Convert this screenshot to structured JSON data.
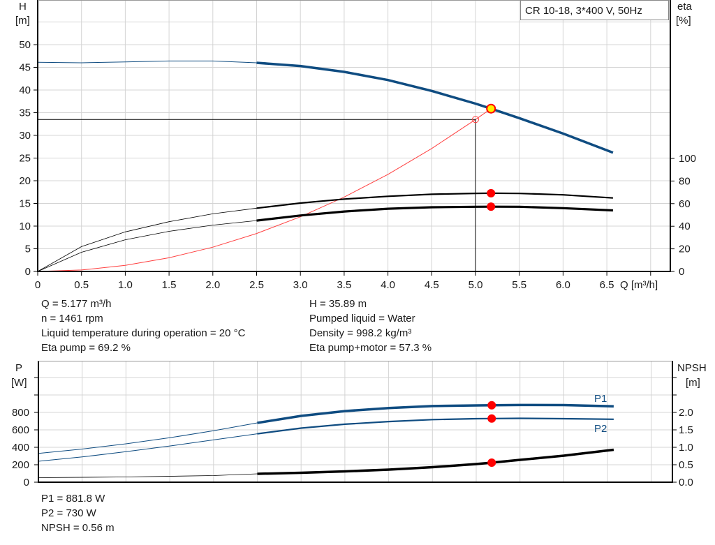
{
  "legend_title": "CR 10-18, 3*400 V, 50Hz",
  "colors": {
    "head": "#0f4c81",
    "eta": "#000000",
    "system": "#ff4040",
    "duty_point": "#ff0000",
    "duty_fill": "#ffee00",
    "grid": "#d4d4d4"
  },
  "chart_data": [
    {
      "type": "line",
      "xlabel": "Q [m³/h]",
      "ylabel": "H\n[m]",
      "ylabel_parts": [
        "H",
        "[m]"
      ],
      "y2label_parts": [
        "eta",
        "[%]"
      ],
      "xlim": [
        0,
        7.0
      ],
      "ylim": [
        0,
        55
      ],
      "y2lim": [
        0,
        100
      ],
      "grid": true,
      "x_ticks": [
        "0",
        "0.5",
        "1.0",
        "1.5",
        "2.0",
        "2.5",
        "3.0",
        "3.5",
        "4.0",
        "4.5",
        "5.0",
        "5.5",
        "6.0",
        "6.5"
      ],
      "y_ticks": [
        "0",
        "5",
        "10",
        "15",
        "20",
        "25",
        "30",
        "35",
        "40",
        "45",
        "50"
      ],
      "y2_ticks": [
        "0",
        "20",
        "40",
        "60",
        "80",
        "100"
      ],
      "series": [
        {
          "key": "head",
          "axis": "H",
          "x": [
            0,
            0.5,
            1.0,
            1.5,
            2.0,
            2.5,
            3.0,
            3.5,
            4.0,
            4.5,
            5.0,
            5.177,
            5.5,
            6.0,
            6.57
          ],
          "y": [
            46.1,
            46.0,
            46.2,
            46.4,
            46.4,
            46.0,
            45.3,
            44.0,
            42.2,
            39.8,
            37.0,
            35.89,
            33.8,
            30.4,
            26.2
          ]
        },
        {
          "key": "eta_pump",
          "axis": "eta",
          "x": [
            0,
            0.5,
            1.0,
            1.5,
            2.0,
            2.5,
            3.0,
            3.5,
            4.0,
            4.5,
            5.0,
            5.177,
            5.5,
            6.0,
            6.57
          ],
          "y": [
            0,
            22,
            35,
            44,
            51,
            56,
            60.5,
            64,
            66.5,
            68.3,
            69.1,
            69.2,
            69.0,
            67.8,
            65
          ]
        },
        {
          "key": "eta_pump_motor",
          "axis": "eta",
          "x": [
            0,
            0.5,
            1.0,
            1.5,
            2.0,
            2.5,
            3.0,
            3.5,
            4.0,
            4.5,
            5.0,
            5.177,
            5.5,
            6.0,
            6.57
          ],
          "y": [
            0,
            17,
            28,
            35.5,
            41,
            45,
            49.5,
            53,
            55.5,
            56.8,
            57.2,
            57.3,
            57.2,
            56,
            54
          ]
        },
        {
          "key": "system",
          "axis": "H",
          "x": [
            0,
            0.5,
            1.0,
            1.5,
            2.0,
            2.5,
            3.0,
            3.5,
            4.0,
            4.5,
            5.0,
            5.177
          ],
          "y": [
            0,
            0.33,
            1.34,
            3.01,
            5.36,
            8.37,
            12.05,
            16.4,
            21.4,
            27.1,
            33.5,
            35.89
          ]
        }
      ],
      "duty_point": {
        "Q": 5.177,
        "H": 35.89,
        "eta_pump": 69.2,
        "eta_pump_motor": 57.3
      },
      "reference_point": {
        "Q": 5.0,
        "H": 33.5
      }
    },
    {
      "type": "line",
      "ylabel_parts": [
        "P",
        "[W]"
      ],
      "y2label_parts": [
        "NPSH",
        "[m]"
      ],
      "xlim": [
        0,
        7.0
      ],
      "ylim": [
        0,
        1400
      ],
      "y2lim": [
        0,
        3.5
      ],
      "grid": true,
      "y_ticks": [
        "0",
        "200",
        "400",
        "600",
        "800"
      ],
      "y2_ticks": [
        "0.0",
        "0.5",
        "1.0",
        "1.5",
        "2.0"
      ],
      "series": [
        {
          "key": "P1",
          "name": "P1",
          "axis": "P",
          "x": [
            0,
            0.5,
            1.0,
            1.5,
            2.0,
            2.5,
            3.0,
            3.5,
            4.0,
            4.5,
            5.0,
            5.177,
            5.5,
            6.0,
            6.57
          ],
          "y": [
            330,
            380,
            440,
            510,
            590,
            680,
            760,
            815,
            850,
            873,
            880,
            881.8,
            885,
            884,
            870
          ]
        },
        {
          "key": "P2",
          "name": "P2",
          "axis": "P",
          "x": [
            0,
            0.5,
            1.0,
            1.5,
            2.0,
            2.5,
            3.0,
            3.5,
            4.0,
            4.5,
            5.0,
            5.177,
            5.5,
            6.0,
            6.57
          ],
          "y": [
            240,
            290,
            350,
            415,
            485,
            555,
            620,
            665,
            695,
            718,
            728,
            730,
            732,
            728,
            722
          ]
        },
        {
          "key": "NPSH",
          "axis": "NPSH",
          "x": [
            0,
            1.0,
            2.0,
            2.5,
            3.0,
            3.5,
            4.0,
            4.5,
            5.0,
            5.177,
            5.5,
            6.0,
            6.57
          ],
          "y": [
            0.13,
            0.15,
            0.19,
            0.24,
            0.27,
            0.31,
            0.36,
            0.43,
            0.52,
            0.56,
            0.64,
            0.76,
            0.93
          ]
        }
      ]
    }
  ],
  "info": {
    "q": "Q = 5.177 m³/h",
    "n": "n = 1461 rpm",
    "temp": "Liquid temperature during operation = 20 °C",
    "eta_pump": "Eta pump = 69.2 %",
    "h": "H = 35.89 m",
    "liquid": "Pumped liquid = Water",
    "density": "Density = 998.2 kg/m³",
    "eta_pm": "Eta pump+motor = 57.3 %",
    "p1": "P1 = 881.8 W",
    "p2": "P2 = 730 W",
    "npsh": "NPSH = 0.56 m"
  }
}
